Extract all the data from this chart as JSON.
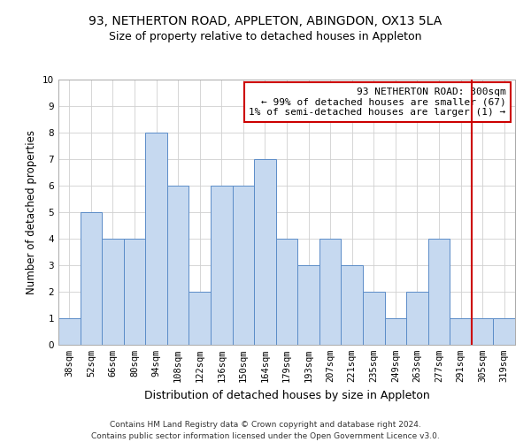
{
  "title1": "93, NETHERTON ROAD, APPLETON, ABINGDON, OX13 5LA",
  "title2": "Size of property relative to detached houses in Appleton",
  "xlabel": "Distribution of detached houses by size in Appleton",
  "ylabel": "Number of detached properties",
  "footer": "Contains HM Land Registry data © Crown copyright and database right 2024.\nContains public sector information licensed under the Open Government Licence v3.0.",
  "categories": [
    "38sqm",
    "52sqm",
    "66sqm",
    "80sqm",
    "94sqm",
    "108sqm",
    "122sqm",
    "136sqm",
    "150sqm",
    "164sqm",
    "179sqm",
    "193sqm",
    "207sqm",
    "221sqm",
    "235sqm",
    "249sqm",
    "263sqm",
    "277sqm",
    "291sqm",
    "305sqm",
    "319sqm"
  ],
  "values": [
    1,
    5,
    4,
    4,
    8,
    6,
    2,
    6,
    6,
    7,
    4,
    3,
    4,
    3,
    2,
    1,
    2,
    4,
    1,
    1,
    1
  ],
  "bar_color": "#c6d9f0",
  "bar_edge_color": "#5b8cc8",
  "bar_edge_width": 0.7,
  "grid_color": "#d0d0d0",
  "annotation_text": "93 NETHERTON ROAD: 300sqm\n← 99% of detached houses are smaller (67)\n1% of semi-detached houses are larger (1) →",
  "annotation_box_color": "#cc0000",
  "vline_x": 18.5,
  "ylim": [
    0,
    10
  ],
  "yticks": [
    0,
    1,
    2,
    3,
    4,
    5,
    6,
    7,
    8,
    9,
    10
  ],
  "title1_fontsize": 10,
  "title2_fontsize": 9,
  "xlabel_fontsize": 9,
  "ylabel_fontsize": 8.5,
  "tick_fontsize": 7.5,
  "annotation_fontsize": 8,
  "footer_fontsize": 6.5
}
